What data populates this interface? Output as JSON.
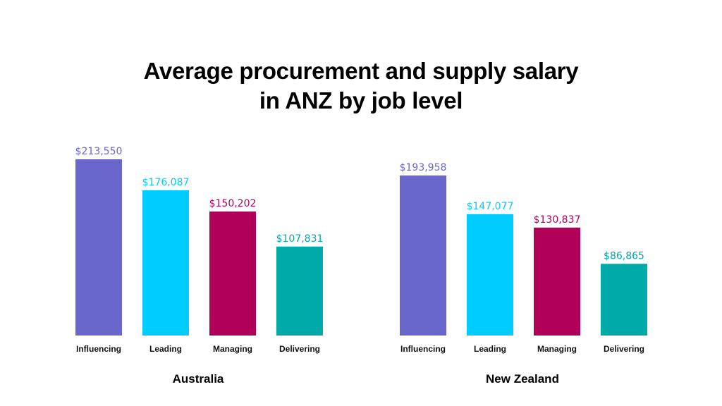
{
  "title_line1": "Average procurement and supply salary",
  "title_line2": "in ANZ by job level",
  "chart_data": [
    {
      "type": "bar",
      "title": "Australia",
      "categories": [
        "Influencing",
        "Leading",
        "Managing",
        "Delivering"
      ],
      "values": [
        213550,
        176087,
        150202,
        107831
      ],
      "value_labels": [
        "$213,550",
        "$176,087",
        "$150,202",
        "$107,831"
      ],
      "colors": [
        "#6966CC",
        "#00CCFF",
        "#B0005A",
        "#00AAA8"
      ],
      "ylim": [
        0,
        213550
      ],
      "grid": false,
      "legend": "none"
    },
    {
      "type": "bar",
      "title": "New Zealand",
      "categories": [
        "Influencing",
        "Leading",
        "Managing",
        "Delivering"
      ],
      "values": [
        193958,
        147077,
        130837,
        86865
      ],
      "value_labels": [
        "$193,958",
        "$147,077",
        "$130,837",
        "$86,865"
      ],
      "colors": [
        "#6966CC",
        "#00CCFF",
        "#B0005A",
        "#00AAA8"
      ],
      "ylim": [
        0,
        213550
      ],
      "grid": false,
      "legend": "none"
    }
  ]
}
